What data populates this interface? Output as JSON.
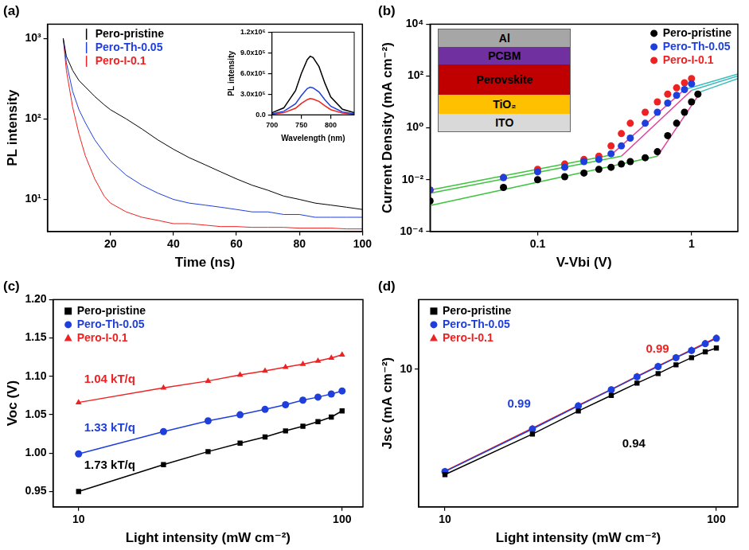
{
  "chart_data": [
    {
      "type": "line",
      "title": "(a)",
      "x_label": "Time (ns)",
      "y_label": "PL intensity",
      "log": "y",
      "grid": false,
      "legend": "top-left",
      "xlim": [
        0,
        100
      ],
      "xticks": [
        20,
        40,
        60,
        80,
        100
      ],
      "ylim": [
        4,
        1500
      ],
      "yticks": [
        {
          "value": 10,
          "label": "10¹"
        },
        {
          "value": 100,
          "label": "10²"
        },
        {
          "value": 1000,
          "label": "10³"
        }
      ],
      "x": [
        5,
        6,
        8,
        10,
        12,
        15,
        18,
        20,
        25,
        30,
        35,
        40,
        45,
        50,
        55,
        60,
        65,
        70,
        75,
        80,
        85,
        90,
        95,
        100
      ],
      "series": [
        {
          "name": "Pero-pristine",
          "color": "#000000",
          "marker": "none",
          "line_style": "solid",
          "values": [
            1000,
            600,
            400,
            300,
            250,
            190,
            150,
            130,
            100,
            75,
            55,
            42,
            33,
            27,
            22,
            18,
            15,
            13,
            11,
            10,
            9,
            8.5,
            8,
            7.5
          ]
        },
        {
          "name": "Pero-Th-0.05",
          "color": "#1f3fdd",
          "marker": "none",
          "line_style": "solid",
          "values": [
            1000,
            500,
            220,
            130,
            90,
            55,
            38,
            30,
            20,
            15,
            12,
            10,
            9,
            8.5,
            8,
            7.5,
            7,
            7,
            6.5,
            6.5,
            6,
            6,
            6,
            6
          ]
        },
        {
          "name": "Pero-I-0.1",
          "color": "#ee2222",
          "marker": "none",
          "line_style": "solid",
          "values": [
            1000,
            400,
            140,
            65,
            35,
            18,
            11,
            9,
            7,
            6,
            5.5,
            5,
            5,
            4.8,
            4.6,
            4.6,
            4.5,
            4.5,
            4.5,
            4.4,
            4.4,
            4.4,
            4.3,
            4.3
          ]
        }
      ],
      "inset": {
        "type": "line",
        "x_label": "Wavelength (nm)",
        "y_label": "PL intensity",
        "grid": false,
        "xlim": [
          700,
          840
        ],
        "xticks": [
          700,
          750,
          800
        ],
        "ylim": [
          0,
          1200000
        ],
        "yticks": [
          {
            "value": 0,
            "label": "0.0"
          },
          {
            "value": 300000,
            "label": "3.0x10⁵"
          },
          {
            "value": 600000,
            "label": "6.0x10⁵"
          },
          {
            "value": 900000,
            "label": "9.0x10⁵"
          },
          {
            "value": 1200000,
            "label": "1.2x10⁶"
          }
        ],
        "x": [
          700,
          720,
          740,
          750,
          760,
          765,
          770,
          780,
          790,
          800,
          820,
          840
        ],
        "series": [
          {
            "color": "#000000",
            "marker": "none",
            "line_style": "solid",
            "values": [
              30000,
              100000,
              350000,
              600000,
              800000,
              850000,
              830000,
              700000,
              460000,
              260000,
              80000,
              30000
            ]
          },
          {
            "color": "#1f3fdd",
            "marker": "none",
            "line_style": "solid",
            "values": [
              15000,
              50000,
              160000,
              280000,
              380000,
              400000,
              390000,
              330000,
              220000,
              125000,
              40000,
              15000
            ]
          },
          {
            "color": "#ee2222",
            "marker": "none",
            "line_style": "solid",
            "values": [
              9000,
              30000,
              95000,
              165000,
              220000,
              235000,
              228000,
              195000,
              130000,
              75000,
              24000,
              9000
            ]
          }
        ]
      }
    },
    {
      "type": "scatter",
      "title": "(b)",
      "x_label": "V-Vbi (V)",
      "y_label": "Current Density (mA cm⁻²)",
      "log": true,
      "grid": false,
      "legend": "top-right",
      "xlim": [
        0.02,
        2
      ],
      "xticks": [
        0.1,
        1
      ],
      "ylim": [
        0.0001,
        10000
      ],
      "yticks": [
        {
          "value": 0.0001,
          "label": "10⁻⁴"
        },
        {
          "value": 0.01,
          "label": "10⁻²"
        },
        {
          "value": 1,
          "label": "10⁰"
        },
        {
          "value": 100,
          "label": "10²"
        },
        {
          "value": 10000,
          "label": "10⁴"
        }
      ],
      "series": [
        {
          "name": "Pero-pristine",
          "color": "#000000",
          "marker": "circle",
          "line_style": "none",
          "x": [
            0.02,
            0.06,
            0.1,
            0.15,
            0.2,
            0.25,
            0.3,
            0.35,
            0.4,
            0.5,
            0.6,
            0.7,
            0.8,
            0.9,
            1.0,
            1.1
          ],
          "values": [
            0.0015,
            0.005,
            0.01,
            0.013,
            0.018,
            0.025,
            0.03,
            0.04,
            0.05,
            0.07,
            0.12,
            0.5,
            1.5,
            4,
            10,
            20
          ]
        },
        {
          "name": "Pero-Th-0.05",
          "color": "#1f3fdd",
          "marker": "circle",
          "line_style": "none",
          "x": [
            0.02,
            0.06,
            0.1,
            0.15,
            0.2,
            0.25,
            0.3,
            0.35,
            0.4,
            0.5,
            0.6,
            0.7,
            0.8,
            0.9,
            1.0
          ],
          "values": [
            0.004,
            0.012,
            0.02,
            0.03,
            0.05,
            0.06,
            0.1,
            0.2,
            0.4,
            1.5,
            4,
            9,
            18,
            30,
            50
          ]
        },
        {
          "name": "Pero-I-0.1",
          "color": "#ee2222",
          "marker": "circle",
          "line_style": "none",
          "x": [
            0.02,
            0.06,
            0.1,
            0.15,
            0.2,
            0.25,
            0.3,
            0.35,
            0.4,
            0.5,
            0.6,
            0.7,
            0.8,
            0.9,
            1.0
          ],
          "values": [
            0.004,
            0.012,
            0.025,
            0.04,
            0.06,
            0.08,
            0.2,
            0.6,
            1.5,
            4,
            10,
            20,
            35,
            55,
            80
          ]
        },
        {
          "color": "#3ec43e",
          "marker": "none",
          "line_style": "solid",
          "x": [
            0.02,
            0.6
          ],
          "values": [
            0.001,
            0.08
          ]
        },
        {
          "color": "#3ec43e",
          "marker": "none",
          "line_style": "solid",
          "x": [
            0.02,
            0.35
          ],
          "values": [
            0.003,
            0.08
          ]
        },
        {
          "color": "#3ec43e",
          "marker": "none",
          "line_style": "solid",
          "x": [
            0.02,
            0.3
          ],
          "values": [
            0.004,
            0.09
          ]
        },
        {
          "color": "#e0409a",
          "marker": "none",
          "line_style": "solid",
          "x": [
            0.6,
            1.15
          ],
          "values": [
            0.08,
            25
          ]
        },
        {
          "color": "#e0409a",
          "marker": "none",
          "line_style": "solid",
          "x": [
            0.35,
            1.0
          ],
          "values": [
            0.08,
            28
          ]
        },
        {
          "color": "#e0409a",
          "marker": "none",
          "line_style": "solid",
          "x": [
            0.3,
            0.9
          ],
          "values": [
            0.09,
            30
          ]
        },
        {
          "color": "#3cbcbc",
          "marker": "none",
          "line_style": "solid",
          "x": [
            1.15,
            2
          ],
          "values": [
            25,
            80
          ]
        },
        {
          "color": "#3cbcbc",
          "marker": "none",
          "line_style": "solid",
          "x": [
            1.0,
            2
          ],
          "values": [
            28,
            100
          ]
        },
        {
          "color": "#3cbcbc",
          "marker": "none",
          "line_style": "solid",
          "x": [
            0.9,
            2
          ],
          "values": [
            30,
            120
          ]
        }
      ],
      "inset": {
        "type": "diagram",
        "layers": [
          "Al",
          "PCBM",
          "Perovskite",
          "TiO₂",
          "ITO"
        ]
      }
    },
    {
      "type": "line",
      "title": "(c)",
      "x_label": "Light intensity (mW cm⁻²)",
      "y_label": "Voc (V)",
      "log": "x",
      "grid": false,
      "legend": "top-left",
      "xlim": [
        8,
        120
      ],
      "xticks": [
        10,
        100
      ],
      "ylim": [
        0.93,
        1.2
      ],
      "yticks": [
        0.95,
        {
          "value": 1,
          "label": "1.00"
        },
        1.05,
        {
          "value": 1.1,
          "label": "1.10"
        },
        1.15,
        {
          "value": 1.2,
          "label": "1.20"
        }
      ],
      "x": [
        10,
        21,
        31,
        41,
        51,
        61,
        71,
        81,
        91,
        100
      ],
      "series": [
        {
          "name": "Pero-pristine",
          "color": "#000000",
          "marker": "square",
          "line_style": "solid",
          "values": [
            0.95,
            0.985,
            1.002,
            1.013,
            1.021,
            1.029,
            1.035,
            1.041,
            1.047,
            1.055
          ]
        },
        {
          "name": "Pero-Th-0.05",
          "color": "#1f3fdd",
          "marker": "circle",
          "line_style": "solid",
          "values": [
            0.999,
            1.028,
            1.042,
            1.05,
            1.057,
            1.063,
            1.069,
            1.073,
            1.077,
            1.081
          ]
        },
        {
          "name": "Pero-I-0.1",
          "color": "#ee2222",
          "marker": "triangle",
          "line_style": "solid",
          "values": [
            1.066,
            1.085,
            1.094,
            1.102,
            1.107,
            1.112,
            1.116,
            1.12,
            1.124,
            1.128
          ]
        }
      ],
      "annotations": [
        {
          "text": "1.04 kT/q",
          "x": 10.5,
          "y": 1.096,
          "color": "#ee2222"
        },
        {
          "text": "1.33 kT/q",
          "x": 10.5,
          "y": 1.033,
          "color": "#1f3fdd"
        },
        {
          "text": "1.73 kT/q",
          "x": 10.5,
          "y": 0.984,
          "color": "#000000"
        }
      ]
    },
    {
      "type": "line",
      "title": "(d)",
      "x_label": "Light intensity (mW cm⁻²)",
      "y_label": "Jsc (mA cm⁻²)",
      "log": true,
      "grid": false,
      "legend": "top-left",
      "xlim": [
        8,
        120
      ],
      "xticks": [
        10,
        100
      ],
      "ylim": [
        0.95,
        33
      ],
      "yticks": [
        10
      ],
      "x": [
        10,
        21,
        31,
        41,
        51,
        61,
        71,
        81,
        91,
        100
      ],
      "series": [
        {
          "name": "Pero-pristine",
          "color": "#000000",
          "marker": "square",
          "line_style": "solid",
          "values": [
            1.65,
            3.3,
            4.9,
            6.4,
            7.9,
            9.3,
            10.8,
            12.2,
            13.5,
            14.4
          ]
        },
        {
          "name": "Pero-Th-0.05",
          "color": "#1f3fdd",
          "marker": "circle",
          "line_style": "solid",
          "values": [
            1.74,
            3.6,
            5.35,
            7.05,
            8.8,
            10.5,
            12.2,
            13.8,
            15.5,
            17.0
          ]
        },
        {
          "name": "Pero-I-0.1",
          "color": "#ee2222",
          "marker": "triangle",
          "line_style": "solid",
          "values": [
            1.75,
            3.65,
            5.4,
            7.1,
            8.9,
            10.6,
            12.3,
            14.0,
            15.7,
            17.2
          ]
        }
      ],
      "annotations": [
        {
          "text": "0.99",
          "x": 17,
          "y": 5.5,
          "color": "#1f3fdd"
        },
        {
          "text": "0.99",
          "x": 55,
          "y": 14,
          "color": "#ee2222"
        },
        {
          "text": "0.94",
          "x": 45,
          "y": 2.8,
          "color": "#000000"
        }
      ]
    }
  ]
}
